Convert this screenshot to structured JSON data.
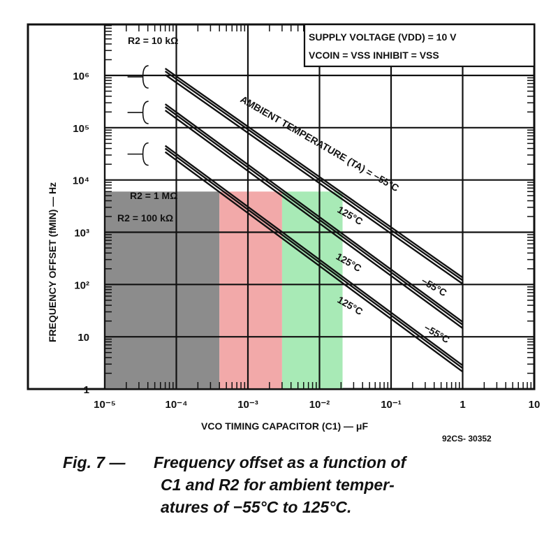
{
  "chart_data": {
    "type": "line",
    "xscale": "log",
    "yscale": "log",
    "xlim": [
      1e-05,
      10
    ],
    "ylim": [
      1,
      1000000
    ],
    "grid": true,
    "xlabel": "VCO TIMING CAPACITOR (C1) — μF",
    "ylabel": "FREQUENCY OFFSET (fMIN) — Hz",
    "x_ticks": [
      "10⁻⁵",
      "10⁻⁴",
      "10⁻³",
      "10⁻²",
      "10⁻¹",
      "1",
      "10"
    ],
    "y_ticks": [
      "1",
      "10",
      "10²",
      "10³",
      "10⁴",
      "10⁵",
      "10⁶"
    ],
    "conditions_line1": "SUPPLY VOLTAGE (VDD) = 10 V",
    "conditions_line2": "VCOIN = VSS    INHIBIT = VSS",
    "temperature_label": "AMBIENT TEMPERATURE (TA) = −55°C",
    "series": [
      {
        "name": "R2 = 10 kΩ",
        "x": [
          7e-05,
          1
        ],
        "y": [
          1200000,
          120
        ],
        "hot_label": "",
        "cold_label": "−55°C"
      },
      {
        "name": "R2 = 100 kΩ",
        "x": [
          7e-05,
          1
        ],
        "y": [
          250000,
          17
        ],
        "hot_label": "125°C",
        "cold_label": "−55°C"
      },
      {
        "name": "R2 = 1 MΩ",
        "x": [
          7e-05,
          1
        ],
        "y": [
          40000,
          2.5
        ],
        "hot_label": "125°C",
        "cold_label": "−55°C"
      }
    ],
    "extra_labels": [
      "125°C"
    ],
    "shaded_bands": [
      {
        "color": "#8c8c8c",
        "x": [
          1e-05,
          0.0004
        ],
        "y": [
          1,
          6000
        ]
      },
      {
        "color": "#f2a9a9",
        "x": [
          0.0004,
          0.003
        ],
        "y": [
          1,
          6000
        ]
      },
      {
        "color": "#a8eab6",
        "x": [
          0.003,
          0.021
        ],
        "y": [
          1,
          6000
        ]
      }
    ],
    "figure_code": "92CS- 30352"
  },
  "caption": {
    "label": "Fig. 7  —",
    "line1": "Frequency offset as a function of",
    "line2": "C1 and R2 for ambient temper-",
    "line3": "atures of −55°C to 125°C."
  }
}
